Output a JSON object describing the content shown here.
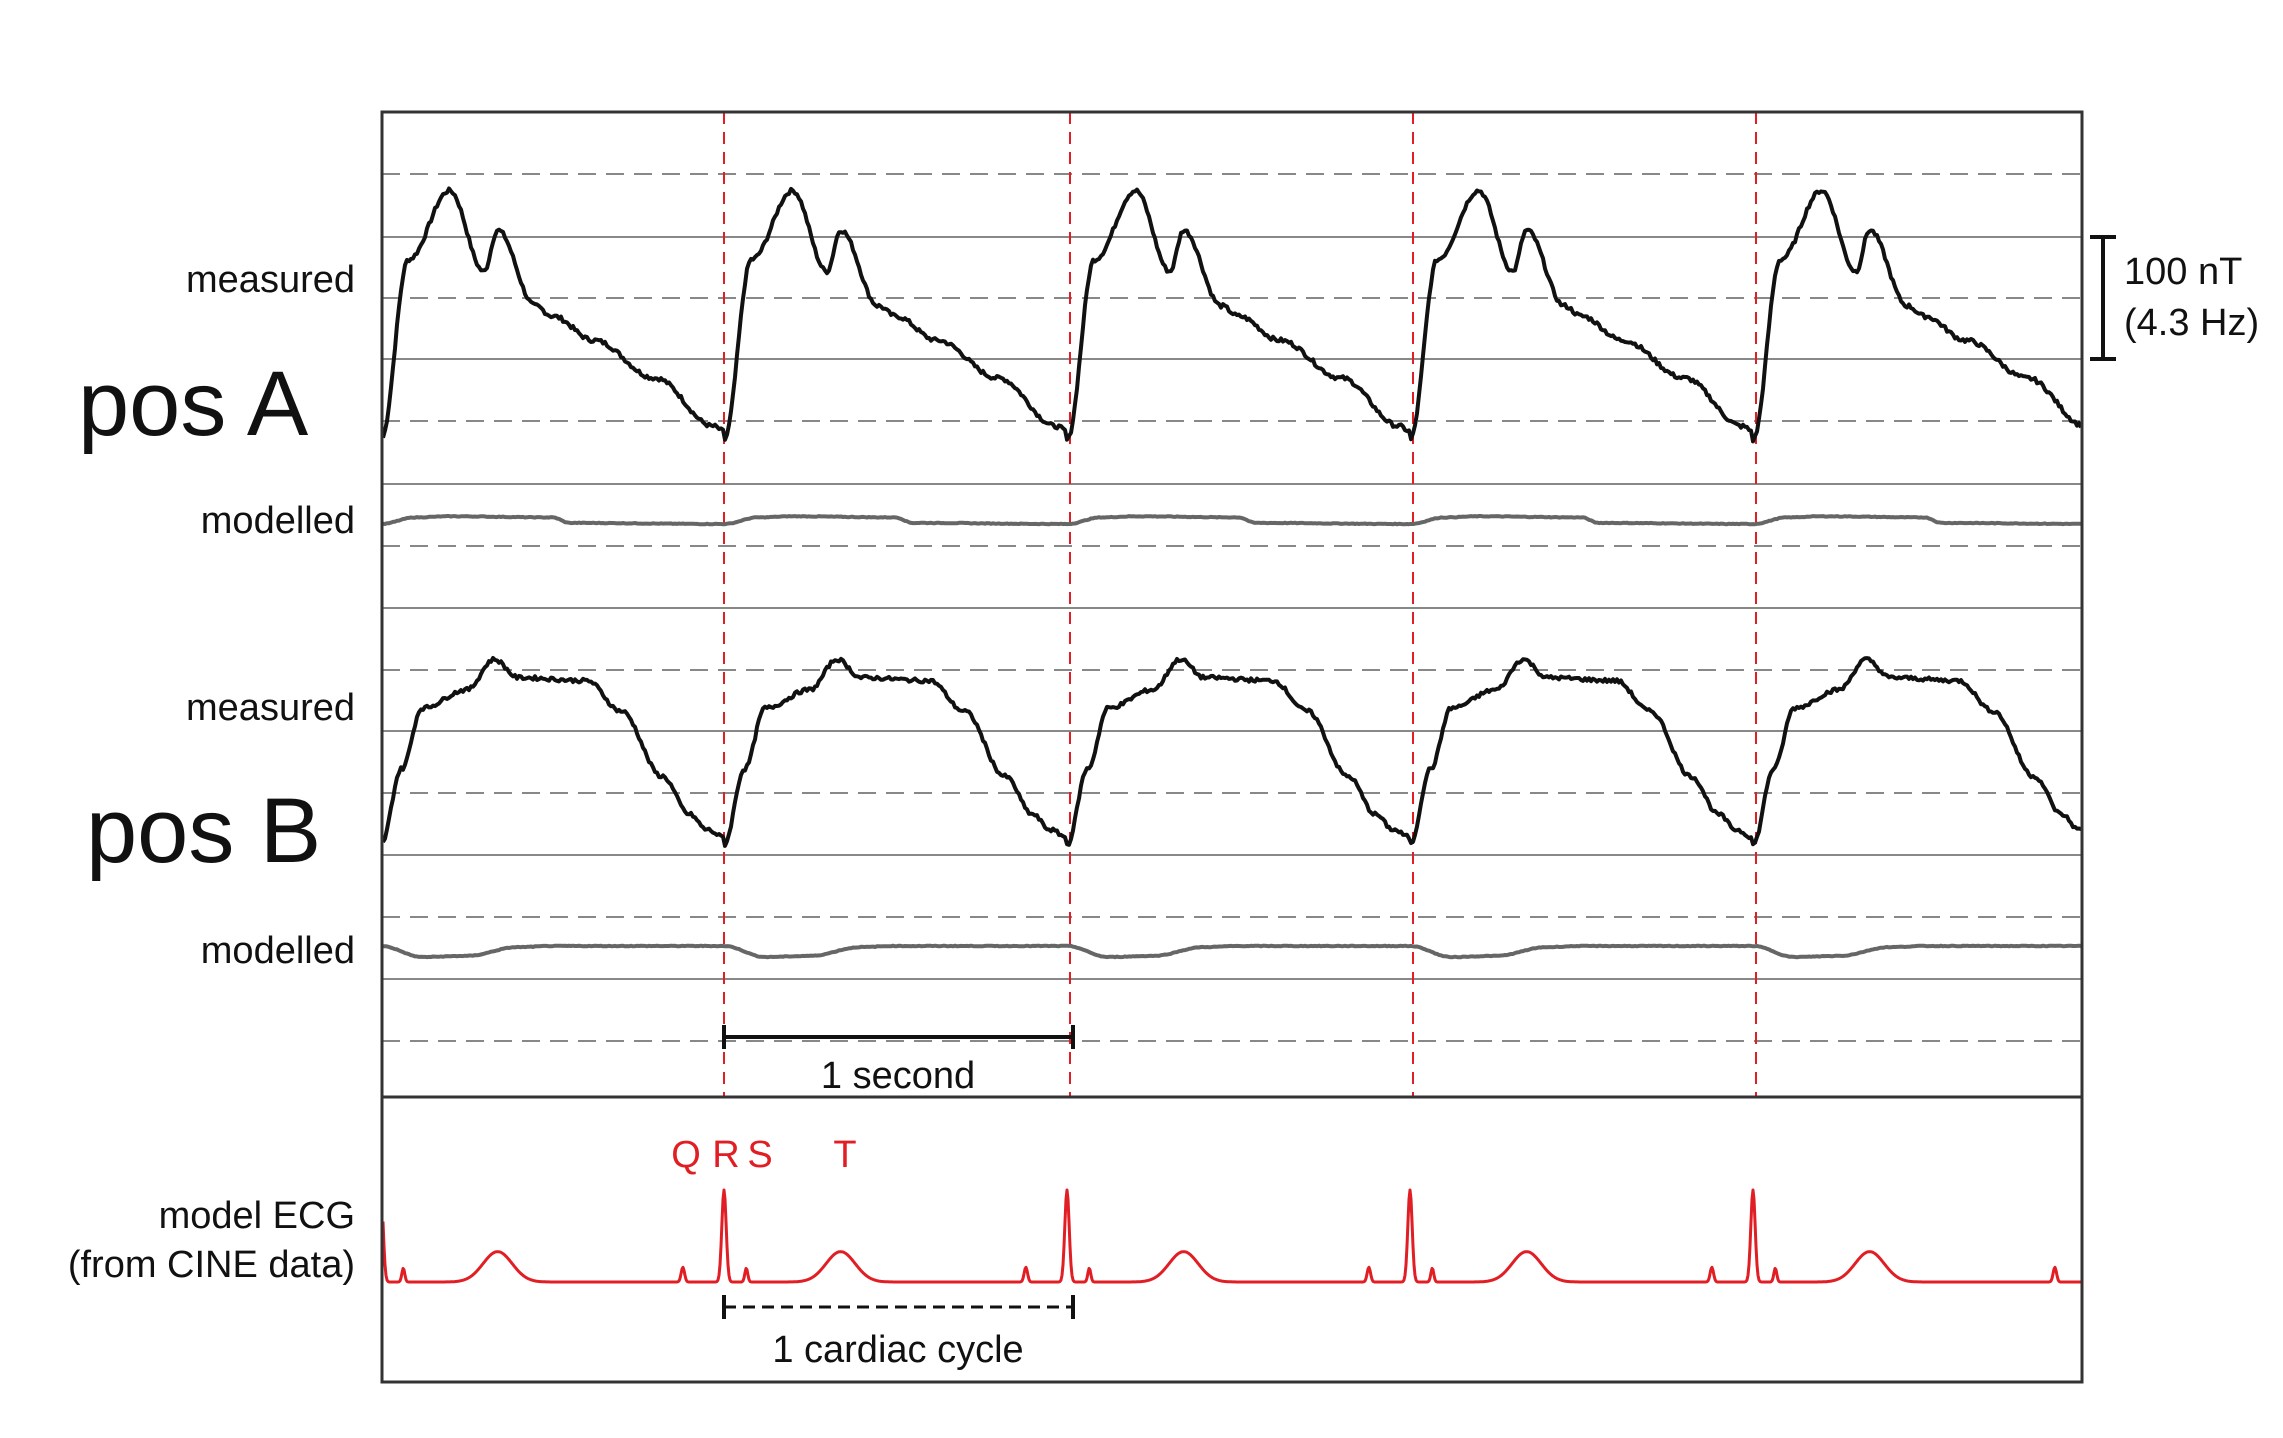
{
  "labels": {
    "measured_a": "measured",
    "pos_a": "pos A",
    "modelled_a": "modelled",
    "measured_b": "measured",
    "pos_b": "pos B",
    "modelled_b": "modelled",
    "ecg_line1": "model ECG",
    "ecg_line2": "(from CINE data)",
    "scale_value": "100 nT",
    "scale_freq": "(4.3 Hz)",
    "one_second": "1 second",
    "one_cycle": "1 cardiac cycle",
    "q": "Q",
    "r": "R",
    "s": "S",
    "t": "T"
  },
  "colors": {
    "trace": "#111111",
    "model": "#666666",
    "ecg": "#e01e24",
    "grid": "#888888",
    "frame": "#333333"
  },
  "chart_data": {
    "type": "line",
    "x_unit": "s",
    "period_s": 1.0,
    "cycles": 5,
    "r_peak_times_s": [
      0.0,
      1.0,
      2.0,
      3.0,
      4.0
    ],
    "scale_bar": {
      "value": "100 nT",
      "freq": "4.3 Hz"
    },
    "series": [
      {
        "name": "pos A measured",
        "x": [
          0.0,
          0.08,
          0.2,
          0.3,
          0.34,
          0.45,
          0.5,
          0.62,
          0.8,
          0.97,
          1.0
        ],
        "values": [
          0,
          105,
          145,
          98,
          122,
          78,
          72,
          58,
          36,
          8,
          5
        ]
      },
      {
        "name": "pos A modelled",
        "x": [
          0.0,
          0.1,
          0.2,
          0.5,
          0.55,
          1.0
        ],
        "values": [
          0,
          6,
          7,
          6,
          1,
          0
        ]
      },
      {
        "name": "pos B measured",
        "x": [
          0.0,
          0.06,
          0.12,
          0.25,
          0.33,
          0.4,
          0.6,
          0.7,
          0.82,
          0.9,
          0.95,
          1.0
        ],
        "values": [
          10,
          60,
          100,
          112,
          132,
          120,
          118,
          98,
          55,
          30,
          20,
          15
        ]
      },
      {
        "name": "pos B modelled",
        "x": [
          0.0,
          0.12,
          0.25,
          0.4,
          0.5,
          1.0
        ],
        "values": [
          0,
          -10,
          -9,
          -1,
          0,
          0
        ]
      },
      {
        "name": "model ECG",
        "x": [
          -0.12,
          0.0,
          0.06,
          0.35,
          0.88,
          1.0
        ],
        "values": [
          0.1,
          1.0,
          0.1,
          0.4,
          0.17,
          1.0
        ]
      }
    ]
  }
}
